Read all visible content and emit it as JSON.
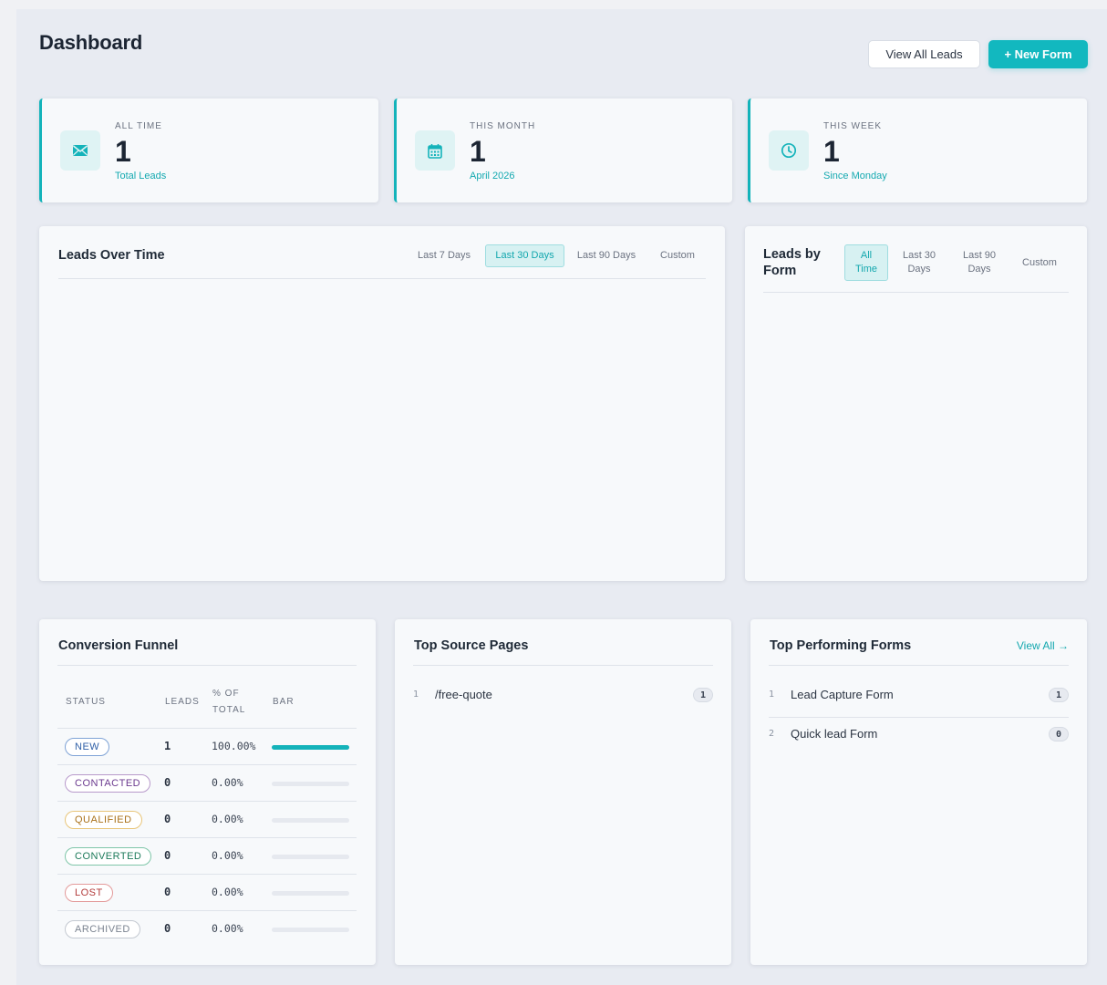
{
  "header": {
    "title": "Dashboard",
    "view_all_leads": "View All Leads",
    "new_form": "+ New Form"
  },
  "colors": {
    "accent": "#13b3ba",
    "background": "#e8ebf2",
    "card": "#f7f9fb"
  },
  "stats": [
    {
      "label": "ALL TIME",
      "value": "1",
      "sub": "Total Leads",
      "icon": "envelope-icon"
    },
    {
      "label": "THIS MONTH",
      "value": "1",
      "sub": "April 2026",
      "icon": "calendar-icon"
    },
    {
      "label": "THIS WEEK",
      "value": "1",
      "sub": "Since Monday",
      "icon": "clock-icon"
    }
  ],
  "leads_over_time": {
    "title": "Leads Over Time",
    "ranges": [
      "Last 7 Days",
      "Last 30 Days",
      "Last 90 Days",
      "Custom"
    ],
    "active_range": "Last 30 Days"
  },
  "leads_by_form": {
    "title_line1": "Leads by",
    "title_line2": "Form",
    "ranges": [
      {
        "line1": "All",
        "line2": "Time"
      },
      {
        "line1": "Last 30",
        "line2": "Days"
      },
      {
        "line1": "Last 90",
        "line2": "Days"
      },
      {
        "line1": "Custom",
        "line2": ""
      }
    ],
    "active_range": "All Time"
  },
  "funnel": {
    "title": "Conversion Funnel",
    "headers": {
      "status": "STATUS",
      "leads": "LEADS",
      "pct_line1": "% OF",
      "pct_line2": "TOTAL",
      "bar": "BAR"
    },
    "rows": [
      {
        "status": "NEW",
        "leads": "1",
        "pct": "100.00%",
        "fraction": 1.0,
        "color": "#2f5fa7",
        "border": "#7fa3d6"
      },
      {
        "status": "CONTACTED",
        "leads": "0",
        "pct": "0.00%",
        "fraction": 0,
        "color": "#6b3a8f",
        "border": "#b89acb"
      },
      {
        "status": "QUALIFIED",
        "leads": "0",
        "pct": "0.00%",
        "fraction": 0,
        "color": "#a9711a",
        "border": "#e8c579"
      },
      {
        "status": "CONVERTED",
        "leads": "0",
        "pct": "0.00%",
        "fraction": 0,
        "color": "#1c7a5a",
        "border": "#7fc6a9"
      },
      {
        "status": "LOST",
        "leads": "0",
        "pct": "0.00%",
        "fraction": 0,
        "color": "#b23a3a",
        "border": "#e39a9a"
      },
      {
        "status": "ARCHIVED",
        "leads": "0",
        "pct": "0.00%",
        "fraction": 0,
        "color": "#7b8390",
        "border": "#c4c9d1"
      }
    ]
  },
  "top_sources": {
    "title": "Top Source Pages",
    "items": [
      {
        "num": "1",
        "path": "/free-quote",
        "count": "1"
      }
    ]
  },
  "top_forms": {
    "title": "Top Performing Forms",
    "view_all": "View All →",
    "items": [
      {
        "num": "1",
        "name": "Lead Capture Form",
        "count": "1"
      },
      {
        "num": "2",
        "name": "Quick lead Form",
        "count": "0"
      }
    ]
  }
}
